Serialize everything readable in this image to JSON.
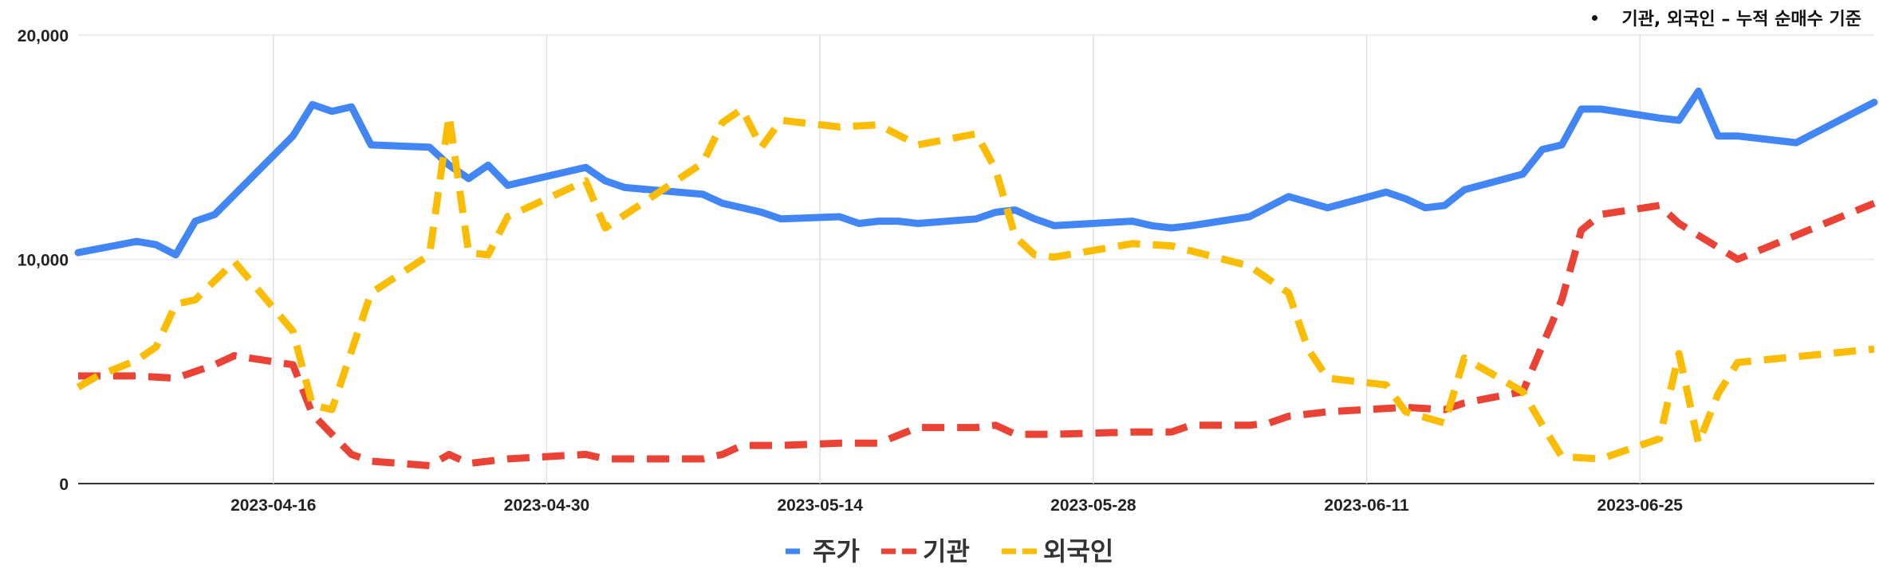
{
  "note": "기관, 외국인 – 누적 순매수 기준",
  "chart_data": {
    "type": "line",
    "x_start": "2023-04-06",
    "x_end": "2023-07-07",
    "ylim": [
      0,
      20000
    ],
    "y_ticks": [
      "0",
      "10,000",
      "20,000"
    ],
    "y_tick_values": [
      0,
      10000,
      20000
    ],
    "x_ticks": [
      "2023-04-16",
      "2023-04-30",
      "2023-05-14",
      "2023-05-28",
      "2023-06-11",
      "2023-06-25"
    ],
    "grid": true,
    "legend_position": "bottom",
    "series": [
      {
        "name": "주가",
        "color": "#4285F4",
        "dash": "solid",
        "points": [
          [
            "2023-04-06",
            10300
          ],
          [
            "2023-04-09",
            10800
          ],
          [
            "2023-04-10",
            10650
          ],
          [
            "2023-04-11",
            10200
          ],
          [
            "2023-04-12",
            11700
          ],
          [
            "2023-04-13",
            12000
          ],
          [
            "2023-04-17",
            15500
          ],
          [
            "2023-04-18",
            16900
          ],
          [
            "2023-04-19",
            16600
          ],
          [
            "2023-04-20",
            16800
          ],
          [
            "2023-04-21",
            15100
          ],
          [
            "2023-04-24",
            15000
          ],
          [
            "2023-04-25",
            14200
          ],
          [
            "2023-04-26",
            13600
          ],
          [
            "2023-04-27",
            14200
          ],
          [
            "2023-04-28",
            13300
          ],
          [
            "2023-05-02",
            14100
          ],
          [
            "2023-05-03",
            13500
          ],
          [
            "2023-05-04",
            13200
          ],
          [
            "2023-05-08",
            12900
          ],
          [
            "2023-05-09",
            12500
          ],
          [
            "2023-05-10",
            12300
          ],
          [
            "2023-05-11",
            12100
          ],
          [
            "2023-05-12",
            11800
          ],
          [
            "2023-05-15",
            11900
          ],
          [
            "2023-05-16",
            11600
          ],
          [
            "2023-05-17",
            11700
          ],
          [
            "2023-05-18",
            11700
          ],
          [
            "2023-05-19",
            11600
          ],
          [
            "2023-05-22",
            11800
          ],
          [
            "2023-05-23",
            12100
          ],
          [
            "2023-05-24",
            12200
          ],
          [
            "2023-05-25",
            11800
          ],
          [
            "2023-05-26",
            11500
          ],
          [
            "2023-05-30",
            11700
          ],
          [
            "2023-05-31",
            11500
          ],
          [
            "2023-06-01",
            11400
          ],
          [
            "2023-06-02",
            11500
          ],
          [
            "2023-06-05",
            11900
          ],
          [
            "2023-06-07",
            12800
          ],
          [
            "2023-06-09",
            12300
          ],
          [
            "2023-06-12",
            13000
          ],
          [
            "2023-06-13",
            12700
          ],
          [
            "2023-06-14",
            12300
          ],
          [
            "2023-06-15",
            12400
          ],
          [
            "2023-06-16",
            13100
          ],
          [
            "2023-06-19",
            13800
          ],
          [
            "2023-06-20",
            14900
          ],
          [
            "2023-06-21",
            15100
          ],
          [
            "2023-06-22",
            16700
          ],
          [
            "2023-06-23",
            16700
          ],
          [
            "2023-06-26",
            16300
          ],
          [
            "2023-06-27",
            16200
          ],
          [
            "2023-06-28",
            17500
          ],
          [
            "2023-06-29",
            15500
          ],
          [
            "2023-06-30",
            15500
          ],
          [
            "2023-07-03",
            15200
          ],
          [
            "2023-07-07",
            17000
          ]
        ]
      },
      {
        "name": "기관",
        "color": "#EA4335",
        "dash": "dashed",
        "points": [
          [
            "2023-04-06",
            4800
          ],
          [
            "2023-04-09",
            4800
          ],
          [
            "2023-04-11",
            4700
          ],
          [
            "2023-04-12",
            5000
          ],
          [
            "2023-04-13",
            5300
          ],
          [
            "2023-04-14",
            5700
          ],
          [
            "2023-04-17",
            5300
          ],
          [
            "2023-04-18",
            3100
          ],
          [
            "2023-04-20",
            1300
          ],
          [
            "2023-04-21",
            1000
          ],
          [
            "2023-04-24",
            800
          ],
          [
            "2023-04-25",
            1300
          ],
          [
            "2023-04-26",
            900
          ],
          [
            "2023-04-28",
            1100
          ],
          [
            "2023-05-02",
            1300
          ],
          [
            "2023-05-03",
            1100
          ],
          [
            "2023-05-08",
            1100
          ],
          [
            "2023-05-09",
            1300
          ],
          [
            "2023-05-10",
            1700
          ],
          [
            "2023-05-12",
            1700
          ],
          [
            "2023-05-15",
            1800
          ],
          [
            "2023-05-17",
            1800
          ],
          [
            "2023-05-19",
            2500
          ],
          [
            "2023-05-22",
            2500
          ],
          [
            "2023-05-23",
            2600
          ],
          [
            "2023-05-24",
            2200
          ],
          [
            "2023-05-26",
            2200
          ],
          [
            "2023-05-30",
            2300
          ],
          [
            "2023-06-01",
            2300
          ],
          [
            "2023-06-02",
            2600
          ],
          [
            "2023-06-05",
            2600
          ],
          [
            "2023-06-06",
            2700
          ],
          [
            "2023-06-07",
            3000
          ],
          [
            "2023-06-09",
            3200
          ],
          [
            "2023-06-13",
            3400
          ],
          [
            "2023-06-15",
            3300
          ],
          [
            "2023-06-16",
            3600
          ],
          [
            "2023-06-19",
            4100
          ],
          [
            "2023-06-21",
            8200
          ],
          [
            "2023-06-22",
            11300
          ],
          [
            "2023-06-23",
            12000
          ],
          [
            "2023-06-26",
            12400
          ],
          [
            "2023-06-27",
            11600
          ],
          [
            "2023-06-30",
            10000
          ],
          [
            "2023-07-07",
            12500
          ]
        ]
      },
      {
        "name": "외국인",
        "color": "#FBBC04",
        "dash": "dashed",
        "points": [
          [
            "2023-04-06",
            4300
          ],
          [
            "2023-04-07",
            4800
          ],
          [
            "2023-04-09",
            5500
          ],
          [
            "2023-04-10",
            6100
          ],
          [
            "2023-04-11",
            8000
          ],
          [
            "2023-04-12",
            8200
          ],
          [
            "2023-04-14",
            9900
          ],
          [
            "2023-04-17",
            6800
          ],
          [
            "2023-04-18",
            3500
          ],
          [
            "2023-04-19",
            3300
          ],
          [
            "2023-04-21",
            8500
          ],
          [
            "2023-04-24",
            10200
          ],
          [
            "2023-04-25",
            16400
          ],
          [
            "2023-04-26",
            10300
          ],
          [
            "2023-04-27",
            10200
          ],
          [
            "2023-04-28",
            11900
          ],
          [
            "2023-05-02",
            13500
          ],
          [
            "2023-05-03",
            11400
          ],
          [
            "2023-05-08",
            14300
          ],
          [
            "2023-05-09",
            16100
          ],
          [
            "2023-05-10",
            16700
          ],
          [
            "2023-05-11",
            15000
          ],
          [
            "2023-05-12",
            16200
          ],
          [
            "2023-05-15",
            15900
          ],
          [
            "2023-05-17",
            16000
          ],
          [
            "2023-05-19",
            15100
          ],
          [
            "2023-05-22",
            15600
          ],
          [
            "2023-05-23",
            14000
          ],
          [
            "2023-05-24",
            11000
          ],
          [
            "2023-05-25",
            10200
          ],
          [
            "2023-05-26",
            10100
          ],
          [
            "2023-05-30",
            10700
          ],
          [
            "2023-06-01",
            10600
          ],
          [
            "2023-06-05",
            9700
          ],
          [
            "2023-06-07",
            8500
          ],
          [
            "2023-06-08",
            6000
          ],
          [
            "2023-06-09",
            4700
          ],
          [
            "2023-06-12",
            4400
          ],
          [
            "2023-06-13",
            3200
          ],
          [
            "2023-06-15",
            2700
          ],
          [
            "2023-06-16",
            5600
          ],
          [
            "2023-06-19",
            4100
          ],
          [
            "2023-06-20",
            2600
          ],
          [
            "2023-06-21",
            1200
          ],
          [
            "2023-06-23",
            1100
          ],
          [
            "2023-06-26",
            2000
          ],
          [
            "2023-06-27",
            5800
          ],
          [
            "2023-06-28",
            1800
          ],
          [
            "2023-06-29",
            4000
          ],
          [
            "2023-06-30",
            5400
          ],
          [
            "2023-07-07",
            6000
          ]
        ]
      }
    ]
  }
}
